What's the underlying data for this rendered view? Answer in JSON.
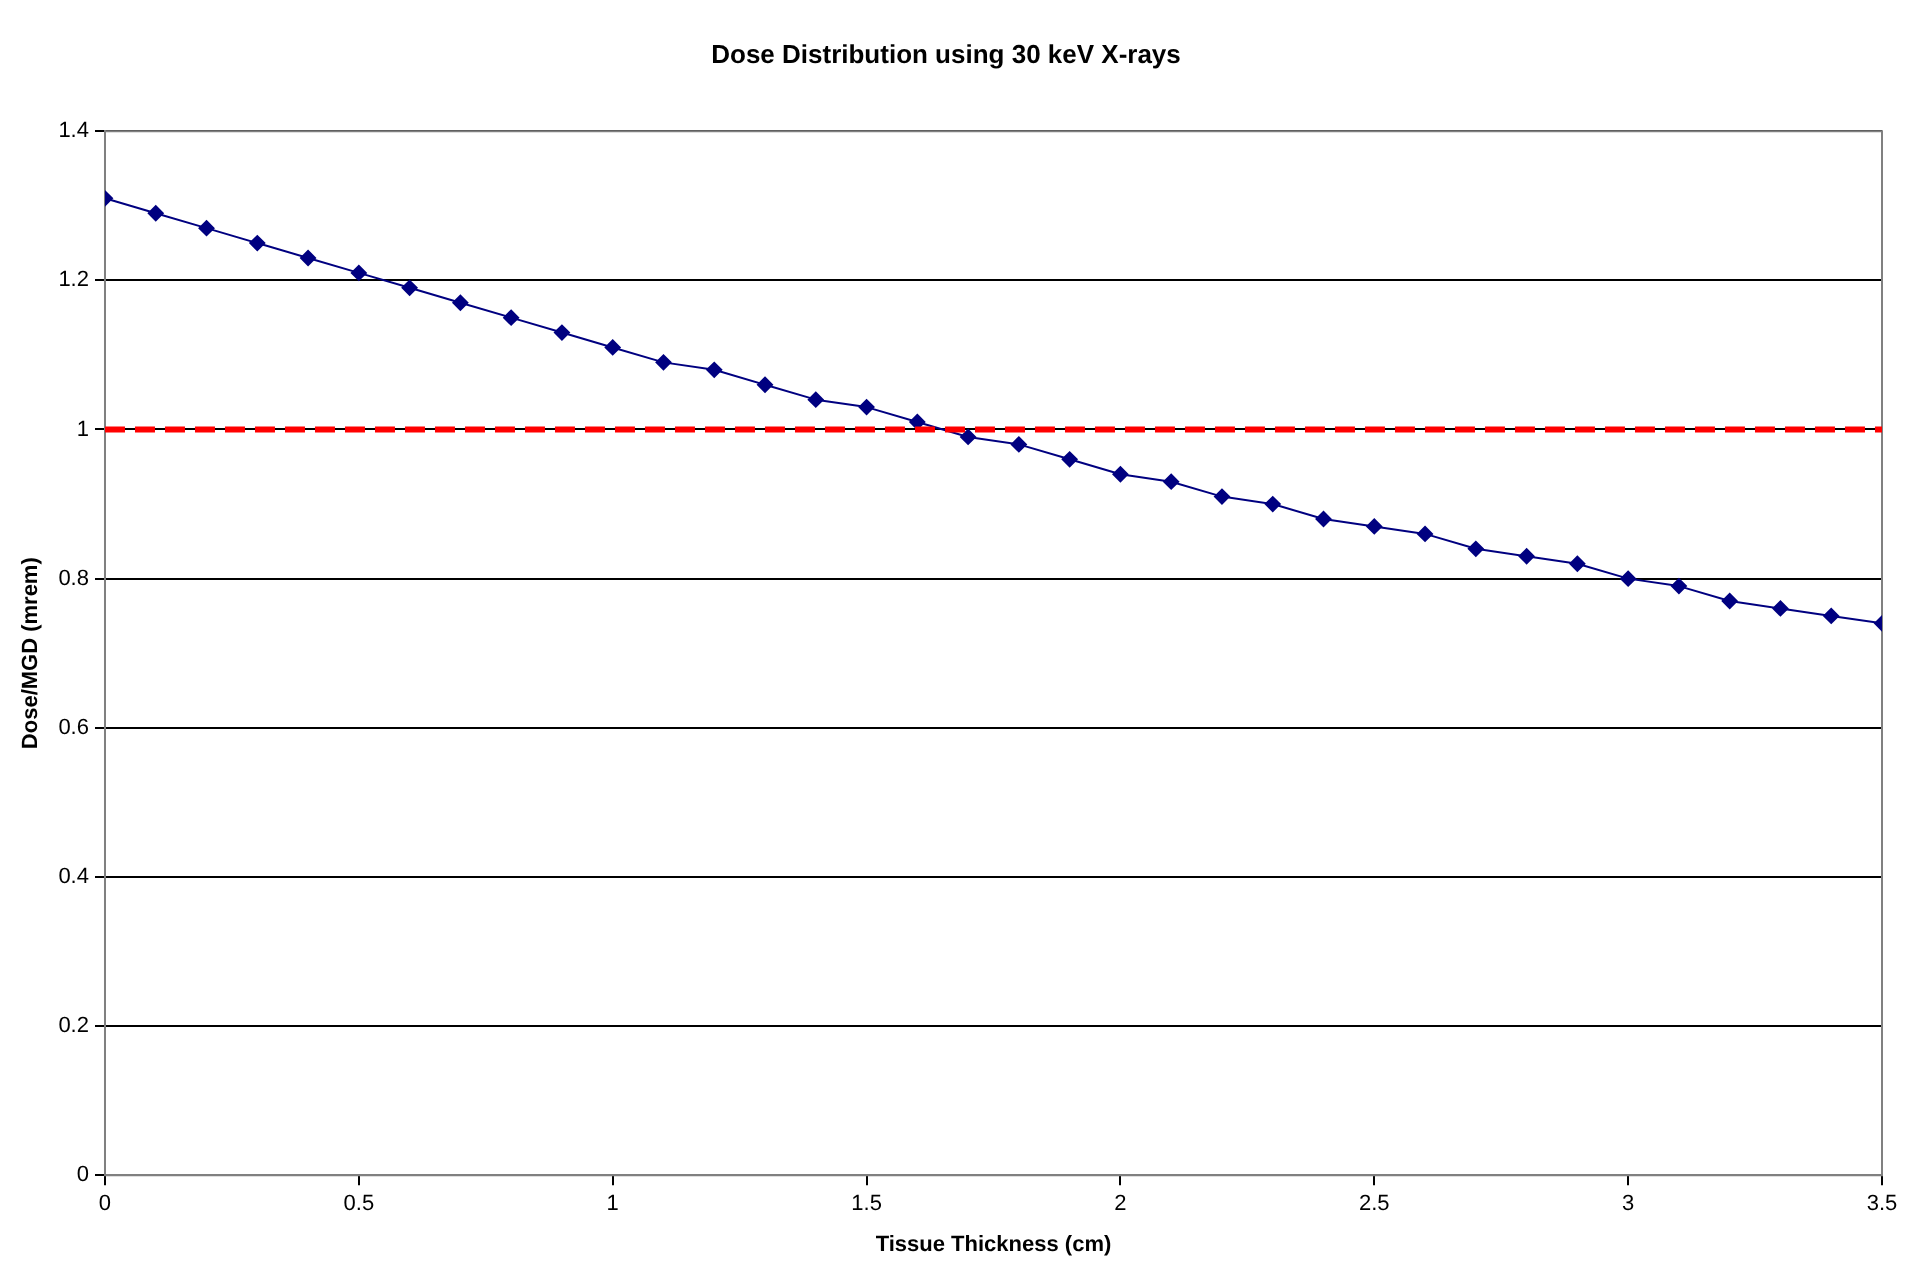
{
  "chart_data": {
    "type": "line",
    "title": "Dose Distribution using 30 keV X-rays",
    "xlabel": "Tissue Thickness (cm)",
    "ylabel": "Dose/MGD (mrem)",
    "x": [
      0,
      0.1,
      0.2,
      0.3,
      0.4,
      0.5,
      0.6,
      0.7,
      0.8,
      0.9,
      1.0,
      1.1,
      1.2,
      1.3,
      1.4,
      1.5,
      1.6,
      1.7,
      1.8,
      1.9,
      2.0,
      2.1,
      2.2,
      2.3,
      2.4,
      2.5,
      2.6,
      2.7,
      2.8,
      2.9,
      3.0,
      3.1,
      3.2,
      3.3,
      3.4,
      3.5
    ],
    "series": [
      {
        "color": "#000080",
        "values": [
          1.31,
          1.29,
          1.27,
          1.25,
          1.23,
          1.21,
          1.19,
          1.17,
          1.15,
          1.13,
          1.11,
          1.09,
          1.08,
          1.06,
          1.04,
          1.03,
          1.01,
          0.99,
          0.98,
          0.96,
          0.94,
          0.93,
          0.91,
          0.9,
          0.88,
          0.87,
          0.86,
          0.84,
          0.83,
          0.82,
          0.8,
          0.79,
          0.77,
          0.76,
          0.75,
          0.74
        ]
      }
    ],
    "xlim": [
      0,
      3.5
    ],
    "xticks": [
      0,
      0.5,
      1,
      1.5,
      2,
      2.5,
      3,
      3.5
    ],
    "ylim": [
      0,
      1.4
    ],
    "yticks": [
      0,
      0.2,
      0.4,
      0.6,
      0.8,
      1,
      1.2,
      1.4
    ],
    "ref_lines": [
      {
        "axis": "y",
        "value": 1,
        "color": "#ff0000",
        "line_style": "dashed"
      }
    ],
    "grid": "y",
    "legend": false,
    "marker": "diamond",
    "line_style": "solid"
  }
}
